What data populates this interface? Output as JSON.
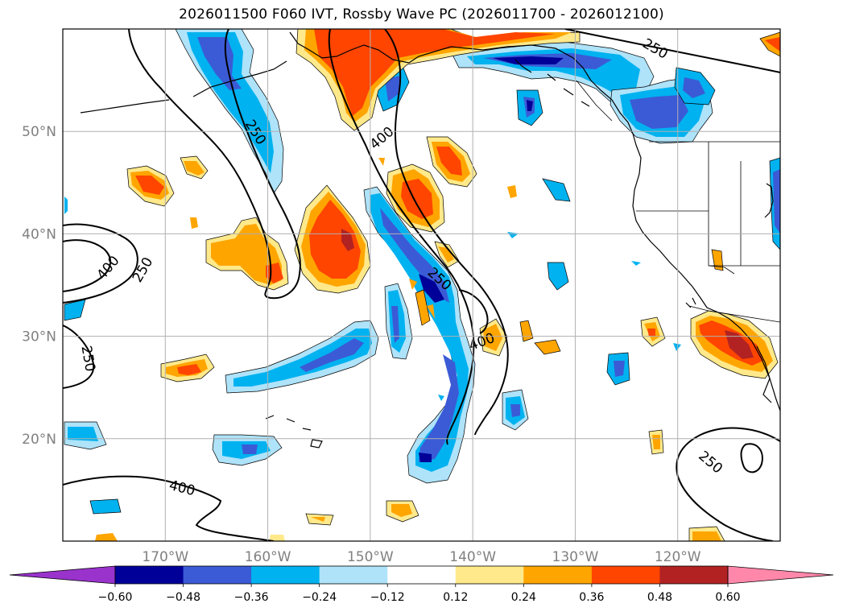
{
  "title": "2026011500 F060 IVT, Rossby Wave PC (2026011700 - 2026012100)",
  "map": {
    "lat_ticks": [
      {
        "label": "50°N",
        "lat": 50
      },
      {
        "label": "40°N",
        "lat": 40
      },
      {
        "label": "30°N",
        "lat": 30
      },
      {
        "label": "20°N",
        "lat": 20
      }
    ],
    "lon_ticks": [
      {
        "label": "170°W",
        "lon": -170
      },
      {
        "label": "160°W",
        "lon": -160
      },
      {
        "label": "150°W",
        "lon": -150
      },
      {
        "label": "140°W",
        "lon": -140
      },
      {
        "label": "130°W",
        "lon": -130
      },
      {
        "label": "120°W",
        "lon": -120
      }
    ],
    "extent": {
      "lon_min": -180,
      "lon_max": -110,
      "lat_min": 10,
      "lat_max": 60
    },
    "grid": true,
    "contour_labels": [
      "250",
      "400",
      "400",
      "250",
      "250",
      "400",
      "250",
      "400",
      "250",
      "250"
    ]
  },
  "colorbar": {
    "tick_labels": [
      "−0.60",
      "−0.48",
      "−0.36",
      "−0.24",
      "−0.12",
      "0.12",
      "0.24",
      "0.36",
      "0.48",
      "0.60"
    ],
    "bins": [
      {
        "from": null,
        "to": -0.6,
        "color": "#9933cc"
      },
      {
        "from": -0.6,
        "to": -0.48,
        "color": "#000099"
      },
      {
        "from": -0.48,
        "to": -0.36,
        "color": "#3b5bd6"
      },
      {
        "from": -0.36,
        "to": -0.24,
        "color": "#00b2f0"
      },
      {
        "from": -0.24,
        "to": -0.12,
        "color": "#aee3fa"
      },
      {
        "from": -0.12,
        "to": 0.12,
        "color": "#ffffff"
      },
      {
        "from": 0.12,
        "to": 0.24,
        "color": "#ffe98a"
      },
      {
        "from": 0.24,
        "to": 0.36,
        "color": "#ffa500"
      },
      {
        "from": 0.36,
        "to": 0.48,
        "color": "#ff4500"
      },
      {
        "from": 0.48,
        "to": 0.6,
        "color": "#b22222"
      },
      {
        "from": 0.6,
        "to": null,
        "color": "#ff88aa"
      }
    ]
  },
  "colors": {
    "pos1": "#ffe98a",
    "pos2": "#ffa500",
    "pos3": "#ff4500",
    "pos4": "#b22222",
    "neg1": "#aee3fa",
    "neg2": "#00b2f0",
    "neg3": "#3b5bd6",
    "neg4": "#000099"
  }
}
